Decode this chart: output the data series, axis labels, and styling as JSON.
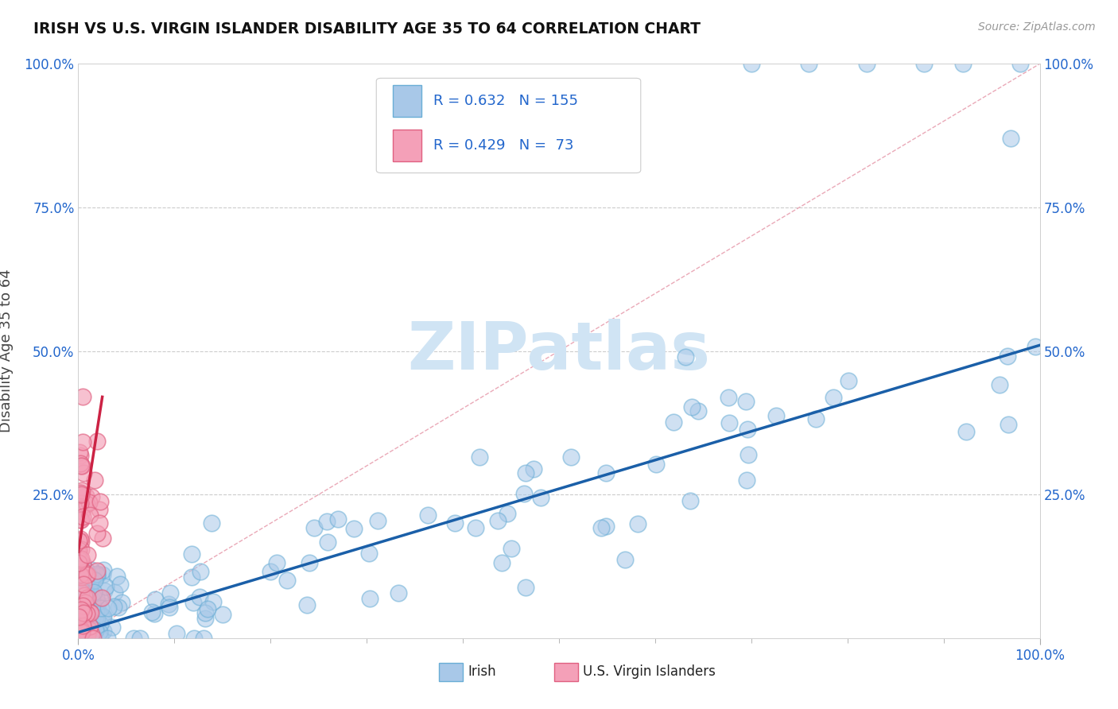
{
  "title": "IRISH VS U.S. VIRGIN ISLANDER DISABILITY AGE 35 TO 64 CORRELATION CHART",
  "source_text": "Source: ZipAtlas.com",
  "ylabel": "Disability Age 35 to 64",
  "xlim": [
    0,
    1
  ],
  "ylim": [
    0,
    1
  ],
  "ytick_positions": [
    0,
    0.25,
    0.5,
    0.75,
    1.0
  ],
  "xtick_positions": [
    0,
    1.0
  ],
  "irish_color": "#a8c8e8",
  "irish_edge": "#6aaed6",
  "vi_color": "#f4a0b8",
  "vi_edge": "#e06080",
  "irish_line_color": "#1a5fa8",
  "vi_line_color": "#cc2244",
  "vi_diag_color": "#e8a0b0",
  "watermark_color": "#d0e4f4",
  "background_color": "#ffffff",
  "irish_slope": 0.5,
  "irish_intercept": 0.01,
  "vi_line_x0": 0.0,
  "vi_line_y0": 0.15,
  "vi_line_x1": 0.025,
  "vi_line_y1": 0.42,
  "marker_size": 220
}
